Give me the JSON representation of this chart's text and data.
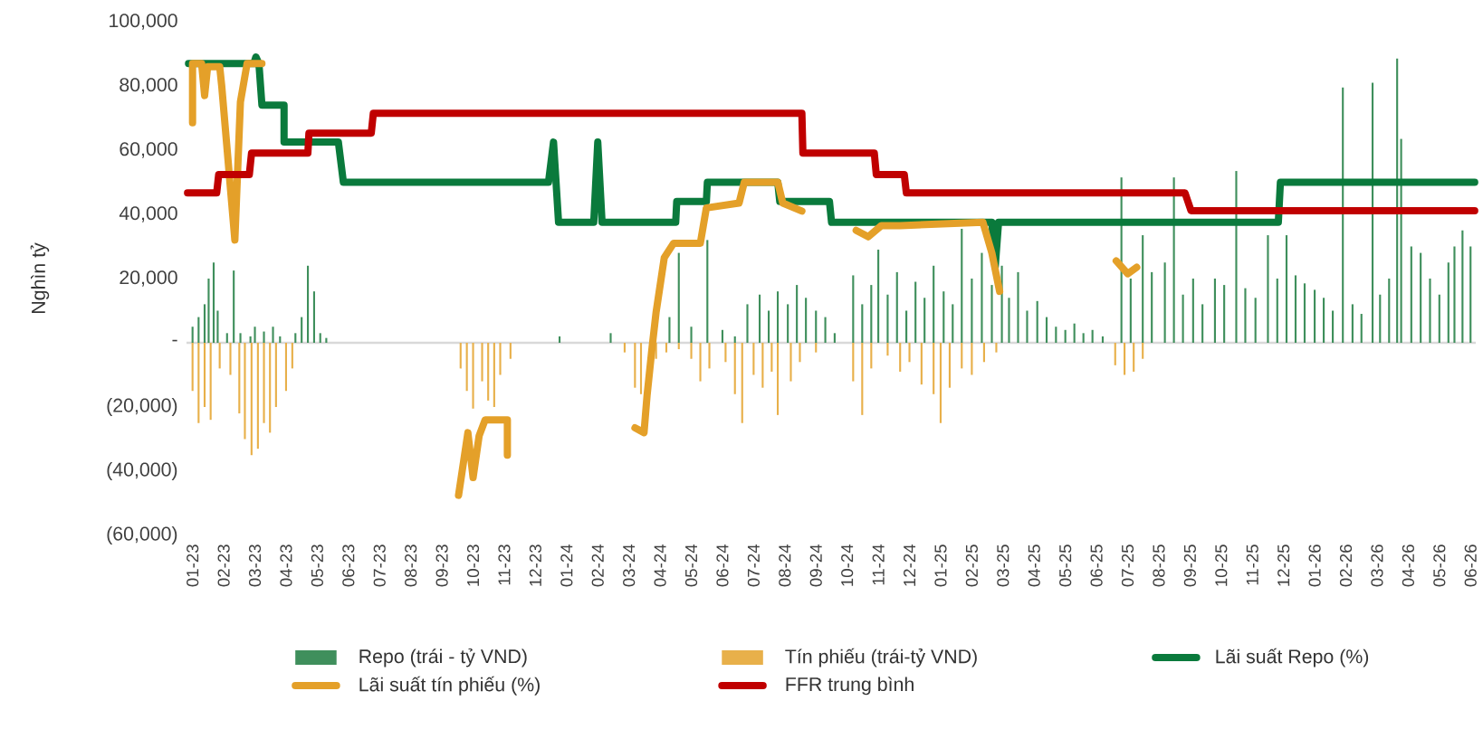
{
  "chart_data": {
    "type": "bar",
    "ylabel": "Nghìn tỷ",
    "legend": "bottom",
    "xlim": [
      "2022-12-26",
      "2026-06-06"
    ],
    "xticks": [
      {
        "value": "2023-01-01",
        "label": "01-23"
      },
      {
        "value": "2023-02-01",
        "label": "02-23"
      },
      {
        "value": "2023-03-01",
        "label": "03-23"
      },
      {
        "value": "2023-04-01",
        "label": "04-23"
      },
      {
        "value": "2023-05-01",
        "label": "05-23"
      },
      {
        "value": "2023-06-01",
        "label": "06-23"
      },
      {
        "value": "2023-07-01",
        "label": "07-23"
      },
      {
        "value": "2023-08-01",
        "label": "08-23"
      },
      {
        "value": "2023-09-01",
        "label": "09-23"
      },
      {
        "value": "2023-10-01",
        "label": "10-23"
      },
      {
        "value": "2023-11-01",
        "label": "11-23"
      },
      {
        "value": "2023-12-01",
        "label": "12-23"
      },
      {
        "value": "2024-01-01",
        "label": "01-24"
      },
      {
        "value": "2024-02-01",
        "label": "02-24"
      },
      {
        "value": "2024-03-01",
        "label": "03-24"
      },
      {
        "value": "2024-04-01",
        "label": "04-24"
      },
      {
        "value": "2024-05-01",
        "label": "05-24"
      },
      {
        "value": "2024-06-01",
        "label": "06-24"
      },
      {
        "value": "2024-07-01",
        "label": "07-24"
      },
      {
        "value": "2024-08-01",
        "label": "08-24"
      },
      {
        "value": "2024-09-01",
        "label": "09-24"
      },
      {
        "value": "2024-10-01",
        "label": "10-24"
      },
      {
        "value": "2024-11-01",
        "label": "11-24"
      },
      {
        "value": "2024-12-01",
        "label": "12-24"
      },
      {
        "value": "2025-01-01",
        "label": "01-25"
      },
      {
        "value": "2025-02-01",
        "label": "02-25"
      },
      {
        "value": "2025-03-01",
        "label": "03-25"
      },
      {
        "value": "2025-04-01",
        "label": "04-25"
      },
      {
        "value": "2025-05-01",
        "label": "05-25"
      },
      {
        "value": "2025-06-01",
        "label": "06-25"
      },
      {
        "value": "2025-07-01",
        "label": "07-25"
      },
      {
        "value": "2025-08-01",
        "label": "08-25"
      },
      {
        "value": "2025-09-01",
        "label": "09-25"
      },
      {
        "value": "2025-10-01",
        "label": "10-25"
      },
      {
        "value": "2025-11-01",
        "label": "11-25"
      },
      {
        "value": "2025-12-01",
        "label": "12-25"
      },
      {
        "value": "2026-01-01",
        "label": "01-26"
      },
      {
        "value": "2026-02-01",
        "label": "02-26"
      },
      {
        "value": "2026-03-01",
        "label": "03-26"
      },
      {
        "value": "2026-04-01",
        "label": "04-26"
      },
      {
        "value": "2026-05-01",
        "label": "05-26"
      },
      {
        "value": "2026-06-01",
        "label": "06-26"
      }
    ],
    "ylim": [
      -60000,
      100000
    ],
    "yticks": [
      {
        "value": -60000,
        "label": "(60,000)"
      },
      {
        "value": -40000,
        "label": "(40,000)"
      },
      {
        "value": -20000,
        "label": "(20,000)"
      },
      {
        "value": 0,
        "label": "-"
      },
      {
        "value": 20000,
        "label": "20,000"
      },
      {
        "value": 40000,
        "label": "40,000"
      },
      {
        "value": 60000,
        "label": "60,000"
      },
      {
        "value": 80000,
        "label": "80,000"
      },
      {
        "value": 100000,
        "label": "100,000"
      }
    ],
    "series": [
      {
        "name": "Repo (trái - tỷ VND)",
        "color": "#3f8f5c",
        "x": [
          "2023-01-01",
          "2023-01-07",
          "2023-01-13",
          "2023-01-17",
          "2023-01-22",
          "2023-01-26",
          "2023-02-04",
          "2023-02-10",
          "2023-02-16",
          "2023-02-25",
          "2023-03-01",
          "2023-03-10",
          "2023-03-19",
          "2023-03-26",
          "2023-04-10",
          "2023-04-16",
          "2023-04-22",
          "2023-04-28",
          "2023-05-04",
          "2023-05-10",
          "2023-12-25",
          "2024-02-13",
          "2024-04-10",
          "2024-04-19",
          "2024-05-01",
          "2024-05-17",
          "2024-06-01",
          "2024-06-13",
          "2024-06-25",
          "2024-07-07",
          "2024-07-16",
          "2024-07-25",
          "2024-08-04",
          "2024-08-13",
          "2024-08-22",
          "2024-09-01",
          "2024-09-10",
          "2024-09-19",
          "2024-10-07",
          "2024-10-16",
          "2024-10-25",
          "2024-11-01",
          "2024-11-10",
          "2024-11-19",
          "2024-11-28",
          "2024-12-07",
          "2024-12-16",
          "2024-12-25",
          "2025-01-04",
          "2025-01-13",
          "2025-01-22",
          "2025-02-01",
          "2025-02-10",
          "2025-02-19",
          "2025-02-28",
          "2025-03-07",
          "2025-03-16",
          "2025-03-25",
          "2025-04-04",
          "2025-04-13",
          "2025-04-22",
          "2025-05-01",
          "2025-05-10",
          "2025-05-19",
          "2025-05-28",
          "2025-06-07",
          "2025-06-25",
          "2025-07-04",
          "2025-07-16",
          "2025-07-25",
          "2025-08-07",
          "2025-08-16",
          "2025-08-25",
          "2025-09-04",
          "2025-09-13",
          "2025-09-25",
          "2025-10-04",
          "2025-10-16",
          "2025-10-25",
          "2025-11-04",
          "2025-11-16",
          "2025-11-25",
          "2025-12-04",
          "2025-12-13",
          "2025-12-22",
          "2026-01-01",
          "2026-01-10",
          "2026-01-19",
          "2026-01-29",
          "2026-02-07",
          "2026-02-15",
          "2026-02-25",
          "2026-03-04",
          "2026-03-13",
          "2026-03-21",
          "2026-03-25",
          "2026-04-04",
          "2026-04-13",
          "2026-04-22",
          "2026-05-01",
          "2026-05-10",
          "2026-05-16",
          "2026-05-24",
          "2026-06-01"
        ],
        "values": [
          5000,
          8000,
          12000,
          20000,
          25000,
          10000,
          3000,
          22500,
          3000,
          2000,
          5000,
          3500,
          5000,
          2000,
          3000,
          8000,
          24000,
          16000,
          3000,
          1500,
          2000,
          3000,
          8000,
          28000,
          5000,
          32000,
          4000,
          2000,
          12000,
          15000,
          10000,
          16000,
          12000,
          18000,
          14000,
          10000,
          8000,
          3000,
          21000,
          12000,
          18000,
          29000,
          15000,
          22000,
          10000,
          19000,
          14000,
          24000,
          16000,
          12000,
          35500,
          20000,
          28000,
          18000,
          24000,
          14000,
          22000,
          10000,
          13000,
          8000,
          5000,
          4000,
          6000,
          3000,
          4000,
          2000,
          51500,
          20000,
          33500,
          22000,
          25000,
          51500,
          15000,
          20000,
          12000,
          20000,
          18000,
          53500,
          17000,
          14000,
          33500,
          20000,
          33500,
          21000,
          18500,
          16500,
          14000,
          10000,
          79500,
          12000,
          9000,
          81000,
          15000,
          20000,
          88500,
          63500,
          30000,
          28000,
          20000,
          15000,
          25000,
          30000,
          35000,
          30000
        ]
      },
      {
        "name": "Tín phiếu (trái-tỷ VND)",
        "color": "#e8b04a",
        "x": [
          "2023-01-01",
          "2023-01-07",
          "2023-01-13",
          "2023-01-19",
          "2023-01-28",
          "2023-02-07",
          "2023-02-15",
          "2023-02-20",
          "2023-02-26",
          "2023-03-04",
          "2023-03-10",
          "2023-03-16",
          "2023-03-22",
          "2023-04-01",
          "2023-04-07",
          "2023-09-19",
          "2023-09-25",
          "2023-10-01",
          "2023-10-10",
          "2023-10-16",
          "2023-10-22",
          "2023-10-28",
          "2023-11-07",
          "2024-02-26",
          "2024-03-07",
          "2024-03-13",
          "2024-03-19",
          "2024-03-28",
          "2024-04-07",
          "2024-04-19",
          "2024-05-01",
          "2024-05-10",
          "2024-05-19",
          "2024-06-04",
          "2024-06-13",
          "2024-06-20",
          "2024-07-01",
          "2024-07-10",
          "2024-07-19",
          "2024-07-25",
          "2024-08-07",
          "2024-08-16",
          "2024-09-01",
          "2024-10-07",
          "2024-10-16",
          "2024-10-25",
          "2024-11-10",
          "2024-11-22",
          "2024-12-01",
          "2024-12-13",
          "2024-12-25",
          "2025-01-01",
          "2025-01-10",
          "2025-01-22",
          "2025-02-01",
          "2025-02-12",
          "2025-02-23",
          "2025-06-19",
          "2025-06-28",
          "2025-07-07",
          "2025-07-16"
        ],
        "values": [
          -15000,
          -25000,
          -20000,
          -24000,
          -8000,
          -10000,
          -22000,
          -30000,
          -35000,
          -33000,
          -25000,
          -28000,
          -20000,
          -15000,
          -8000,
          -8000,
          -15000,
          -20500,
          -12000,
          -18000,
          -20000,
          -10000,
          -5000,
          -3000,
          -14000,
          -16000,
          null,
          -5000,
          -3000,
          -2000,
          -5000,
          -12000,
          -8000,
          -6000,
          -16000,
          -25000,
          -10000,
          -14000,
          -9000,
          -22500,
          -12000,
          -6000,
          -3000,
          -12000,
          -22500,
          -8000,
          -4000,
          -9000,
          -6000,
          -13000,
          -16000,
          -25000,
          -14000,
          -8000,
          -10000,
          -6000,
          -3000,
          -7000,
          -10000,
          -9000,
          -5000
        ]
      },
      {
        "name": "Lãi suất Repo (%)",
        "type": "line",
        "color": "#0a7a3c",
        "x": [
          "2022-12-28",
          "2023-02-28",
          "2023-03-02",
          "2023-03-05",
          "2023-03-08",
          "2023-03-30",
          "2023-03-30",
          "2023-05-22",
          "2023-05-27",
          "2023-12-14",
          "2023-12-19",
          "2023-12-24",
          "2024-01-28",
          "2024-02-01",
          "2024-02-05",
          "2024-04-16",
          "2024-04-17",
          "2024-05-16",
          "2024-05-17",
          "2024-07-25",
          "2024-07-27",
          "2024-09-14",
          "2024-09-16",
          "2025-02-19",
          "2025-02-22",
          "2025-02-25",
          "2025-11-26",
          "2025-11-28",
          "2026-06-05"
        ],
        "values": [
          87000,
          87000,
          89000,
          87000,
          74000,
          74000,
          62500,
          62500,
          50000,
          50000,
          62500,
          37500,
          37500,
          62500,
          37500,
          37500,
          44000,
          44000,
          50000,
          50000,
          44000,
          44000,
          37500,
          37500,
          23500,
          37500,
          37500,
          50000,
          50000
        ]
      },
      {
        "name": "Lãi suất tín phiếu (%)",
        "type": "line",
        "color": "#e4a029",
        "x": [
          "2023-01-01",
          "2023-01-01",
          "2023-01-10",
          "2023-01-13",
          "2023-01-16",
          "2023-01-28",
          "2023-01-30",
          "2023-02-11",
          "2023-02-16",
          "2023-02-22",
          "2023-03-08"
        ],
        "values": [
          68500,
          87000,
          87000,
          77000,
          86000,
          86000,
          80000,
          32000,
          75000,
          87000,
          87000
        ]
      },
      {
        "name": "FFR trung bình",
        "type": "line",
        "color": "#c00000",
        "x": [
          "2022-12-27",
          "2023-01-25",
          "2023-01-27",
          "2023-02-24",
          "2023-02-26",
          "2023-04-22",
          "2023-04-23",
          "2023-06-23",
          "2023-06-25",
          "2024-08-18",
          "2024-08-19",
          "2024-10-28",
          "2024-10-30",
          "2024-11-26",
          "2024-11-28",
          "2025-08-27",
          "2025-09-02",
          "2026-06-05"
        ],
        "values": [
          46700,
          46700,
          52400,
          52400,
          59100,
          59100,
          65300,
          65300,
          71500,
          71500,
          59100,
          59100,
          52400,
          52400,
          46700,
          46700,
          41100,
          41100
        ]
      },
      {
        "type": "line",
        "color": "#e4a029",
        "x": [
          "2023-09-17",
          "2023-09-26",
          "2023-10-01",
          "2023-10-07",
          "2023-10-13",
          "2023-11-04",
          "2023-11-04"
        ],
        "values": [
          -47500,
          -28000,
          -42000,
          -29000,
          -24000,
          -24000,
          -35000
        ]
      },
      {
        "type": "line",
        "color": "#e4a029",
        "x": [
          "2024-03-07",
          "2024-03-16",
          "2024-03-19",
          "2024-03-24",
          "2024-03-28",
          "2024-04-05",
          "2024-04-14",
          "2024-05-10",
          "2024-05-16",
          "2024-06-17",
          "2024-06-22",
          "2024-07-25",
          "2024-07-30",
          "2024-08-18"
        ],
        "values": [
          -26500,
          -28000,
          -16500,
          -1500,
          9500,
          26500,
          31000,
          31000,
          42000,
          43500,
          50000,
          50000,
          43500,
          41000
        ]
      },
      {
        "type": "line",
        "color": "#e4a029",
        "x": [
          "2024-10-10",
          "2024-10-22",
          "2024-11-04",
          "2024-11-22",
          "2025-02-11",
          "2025-02-19",
          "2025-02-26"
        ],
        "values": [
          35000,
          33000,
          36500,
          36500,
          37500,
          28000,
          16000
        ]
      },
      {
        "type": "line",
        "color": "#e4a029",
        "x": [
          "2025-06-20",
          "2025-07-01",
          "2025-07-10"
        ],
        "values": [
          25500,
          21500,
          23500
        ]
      }
    ]
  }
}
